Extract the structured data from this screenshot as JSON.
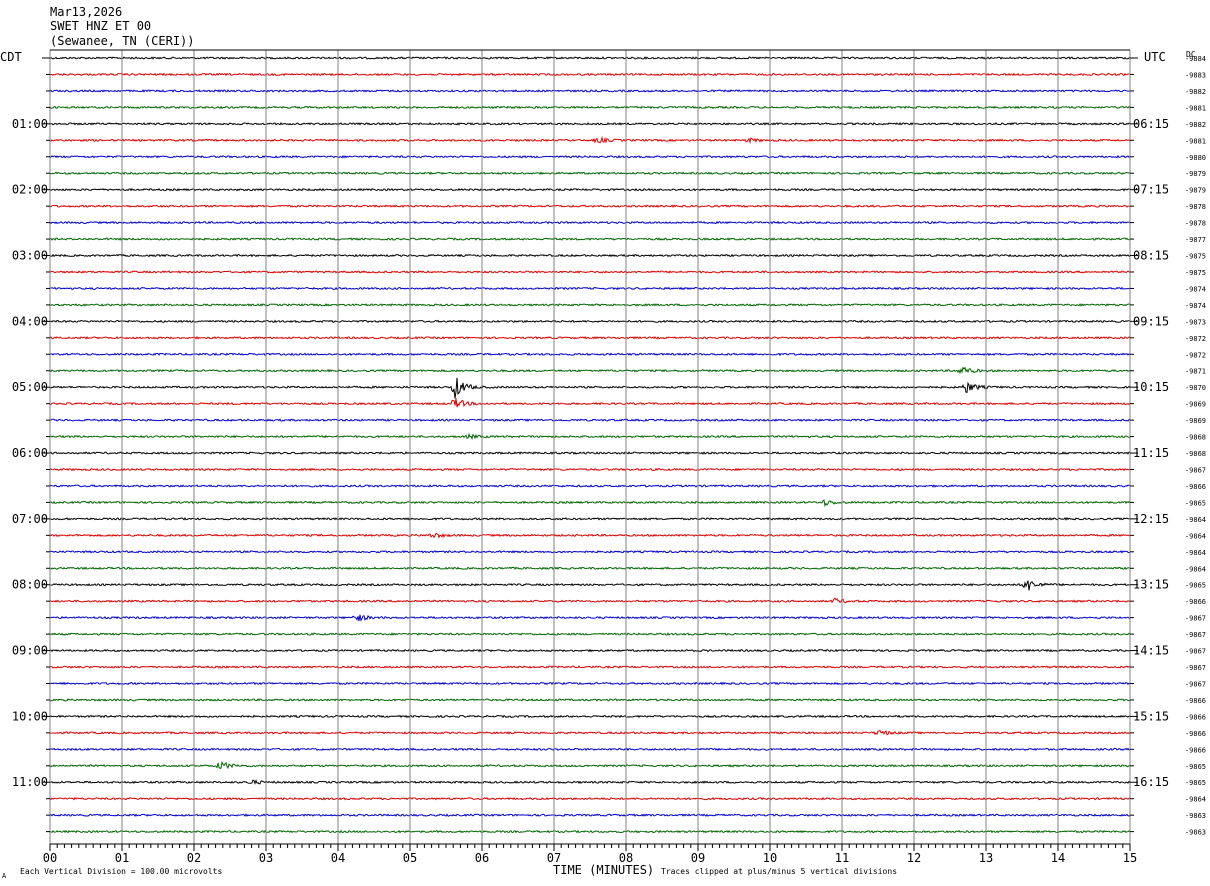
{
  "header": {
    "date": "Mar13,2026",
    "station": "SWET HNZ ET 00",
    "location": "(Sewanee, TN (CERI))"
  },
  "left_axis_label": "CDT",
  "right_axis_label": "UTC",
  "dc_label": "DC",
  "footer": {
    "scale_note": "Each Vertical Division = 100.00 microvolts",
    "clip_note": "Traces clipped at plus/minus 5 vertical divisions",
    "corner_mark": "A"
  },
  "colors": {
    "cycle": [
      "#000000",
      "#dd0000",
      "#0000cc",
      "#006600"
    ],
    "grid": "#808080"
  },
  "chart_data": {
    "type": "line",
    "title": "",
    "xlabel": "TIME (MINUTES)",
    "ylabel": "",
    "xlim": [
      0,
      15
    ],
    "x_ticks": [
      "00",
      "01",
      "02",
      "03",
      "04",
      "05",
      "06",
      "07",
      "08",
      "09",
      "10",
      "11",
      "12",
      "13",
      "14",
      "15"
    ],
    "left_hour_labels": [
      "01:00",
      "02:00",
      "03:00",
      "04:00",
      "05:00",
      "06:00",
      "07:00",
      "08:00",
      "09:00",
      "10:00",
      "11:00"
    ],
    "right_hour_labels": [
      "06:15",
      "07:15",
      "08:15",
      "09:15",
      "10:15",
      "11:15",
      "12:15",
      "13:15",
      "14:15",
      "15:15",
      "16:15"
    ],
    "trace_count": 48,
    "dc_values": [
      "-9884",
      "-9883",
      "-9882",
      "-9881",
      "-9882",
      "-9881",
      "-9880",
      "-9879",
      "-9879",
      "-9878",
      "-9878",
      "-9877",
      "-9875",
      "-9875",
      "-9874",
      "-9874",
      "-9873",
      "-9872",
      "-9872",
      "-9871",
      "-9870",
      "-9869",
      "-9869",
      "-9868",
      "-9868",
      "-9867",
      "-9866",
      "-9865",
      "-9864",
      "-9864",
      "-9864",
      "-9864",
      "-9865",
      "-9866",
      "-9867",
      "-9867",
      "-9867",
      "-9867",
      "-9867",
      "-9866",
      "-9866",
      "-9866",
      "-9866",
      "-9865",
      "-9865",
      "-9864",
      "-9863",
      "-9863"
    ],
    "events": [
      {
        "trace": 5,
        "minute": 7.6,
        "amplitude": 3
      },
      {
        "trace": 5,
        "minute": 9.7,
        "amplitude": 2
      },
      {
        "trace": 19,
        "minute": 12.65,
        "amplitude": 5
      },
      {
        "trace": 20,
        "minute": 5.62,
        "amplitude": 12
      },
      {
        "trace": 20,
        "minute": 12.72,
        "amplitude": 6
      },
      {
        "trace": 21,
        "minute": 5.62,
        "amplitude": 6
      },
      {
        "trace": 23,
        "minute": 5.8,
        "amplitude": 2
      },
      {
        "trace": 27,
        "minute": 10.75,
        "amplitude": 3
      },
      {
        "trace": 29,
        "minute": 5.3,
        "amplitude": 3
      },
      {
        "trace": 32,
        "minute": 13.55,
        "amplitude": 8
      },
      {
        "trace": 33,
        "minute": 10.9,
        "amplitude": 3
      },
      {
        "trace": 34,
        "minute": 4.25,
        "amplitude": 4
      },
      {
        "trace": 41,
        "minute": 11.5,
        "amplitude": 3
      },
      {
        "trace": 43,
        "minute": 2.35,
        "amplitude": 5
      },
      {
        "trace": 44,
        "minute": 2.8,
        "amplitude": 2
      }
    ]
  }
}
